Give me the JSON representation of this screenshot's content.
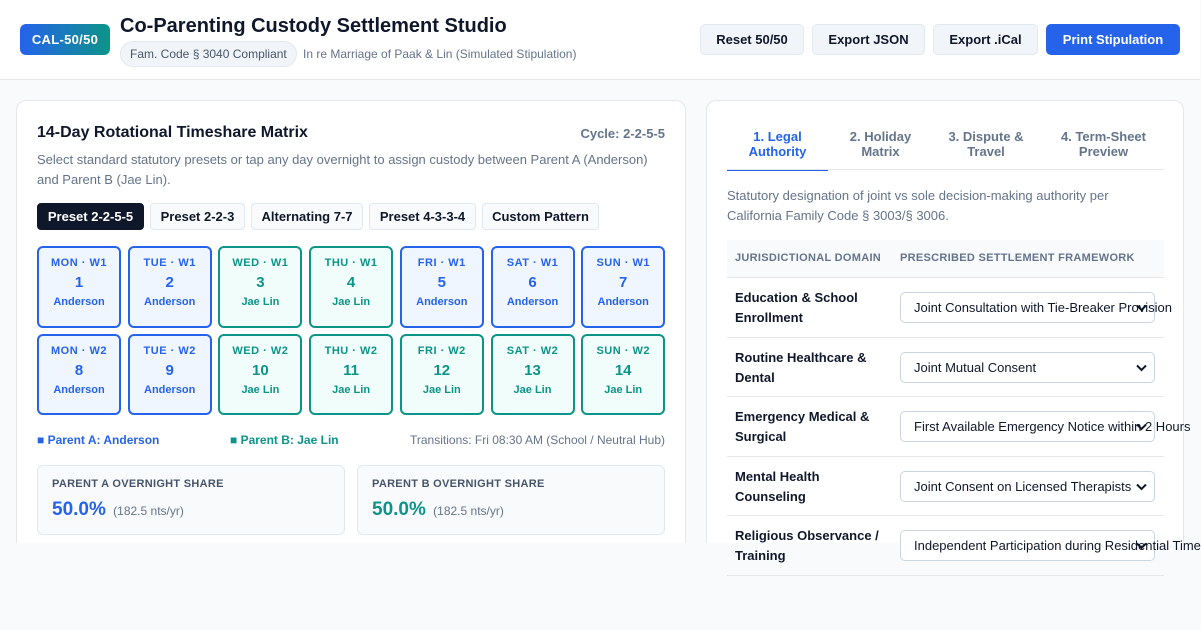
{
  "header": {
    "logo": "CAL-50/50",
    "title": "Co-Parenting Custody Settlement Studio",
    "badge": "Fam. Code § 3040 Compliant",
    "case_ref": "In re Marriage of Paak & Lin (Simulated Stipulation)",
    "buttons": [
      "Reset 50/50",
      "Export JSON",
      "Export .iCal",
      "Print Stipulation"
    ]
  },
  "matrix": {
    "title": "14-Day Rotational Timeshare Matrix",
    "cycle": "Cycle: 2-2-5-5",
    "description": "Select standard statutory presets or tap any day overnight to assign custody between Parent A (Anderson) and Parent B (Jae Lin).",
    "presets": [
      "Preset 2-2-5-5",
      "Preset 2-2-3",
      "Alternating 7-7",
      "Preset 4-3-3-4",
      "Custom Pattern"
    ],
    "active_preset": "Preset 2-2-5-5",
    "days": [
      {
        "label": "MON · W1",
        "num": "1",
        "parent": "Anderson"
      },
      {
        "label": "TUE · W1",
        "num": "2",
        "parent": "Anderson"
      },
      {
        "label": "WED · W1",
        "num": "3",
        "parent": "Jae Lin"
      },
      {
        "label": "THU · W1",
        "num": "4",
        "parent": "Jae Lin"
      },
      {
        "label": "FRI · W1",
        "num": "5",
        "parent": "Anderson"
      },
      {
        "label": "SAT · W1",
        "num": "6",
        "parent": "Anderson"
      },
      {
        "label": "SUN · W1",
        "num": "7",
        "parent": "Anderson"
      },
      {
        "label": "MON · W2",
        "num": "8",
        "parent": "Anderson"
      },
      {
        "label": "TUE · W2",
        "num": "9",
        "parent": "Anderson"
      },
      {
        "label": "WED · W2",
        "num": "10",
        "parent": "Jae Lin"
      },
      {
        "label": "THU · W2",
        "num": "11",
        "parent": "Jae Lin"
      },
      {
        "label": "FRI · W2",
        "num": "12",
        "parent": "Jae Lin"
      },
      {
        "label": "SAT · W2",
        "num": "13",
        "parent": "Jae Lin"
      },
      {
        "label": "SUN · W2",
        "num": "14",
        "parent": "Jae Lin"
      }
    ],
    "legend_a": "■ Parent A: Anderson",
    "legend_b": "■ Parent B: Jae Lin",
    "transitions": "Transitions: Fri 08:30 AM (School / Neutral Hub)",
    "share_a": {
      "title": "PARENT A OVERNIGHT SHARE",
      "value": "50.0%",
      "note": "(182.5 nts/yr)"
    },
    "share_b": {
      "title": "PARENT B OVERNIGHT SHARE",
      "value": "50.0%",
      "note": "(182.5 nts/yr)"
    }
  },
  "colors": {
    "parent_a": "#2563eb",
    "parent_b": "#0d9488",
    "primary": "#2563eb"
  },
  "right": {
    "tabs": [
      "1. Legal Authority",
      "2. Holiday Matrix",
      "3. Dispute & Travel",
      "4. Term-Sheet Preview"
    ],
    "active_tab": "1. Legal Authority",
    "description": "Statutory designation of joint vs sole decision-making authority per California Family Code § 3003/§ 3006.",
    "table": {
      "headers": [
        "JURISDICTIONAL DOMAIN",
        "PRESCRIBED SETTLEMENT FRAMEWORK"
      ],
      "rows": [
        {
          "domain": "Education & School Enrollment",
          "value": "Joint Consultation with Tie-Breaker Provision"
        },
        {
          "domain": "Routine Healthcare & Dental",
          "value": "Joint Mutual Consent"
        },
        {
          "domain": "Emergency Medical & Surgical",
          "value": "First Available Emergency Notice within 2 Hours"
        },
        {
          "domain": "Mental Health Counseling",
          "value": "Joint Consent on Licensed Therapists"
        },
        {
          "domain": "Religious Observance / Training",
          "value": "Independent Participation during Residential Time"
        }
      ]
    }
  }
}
